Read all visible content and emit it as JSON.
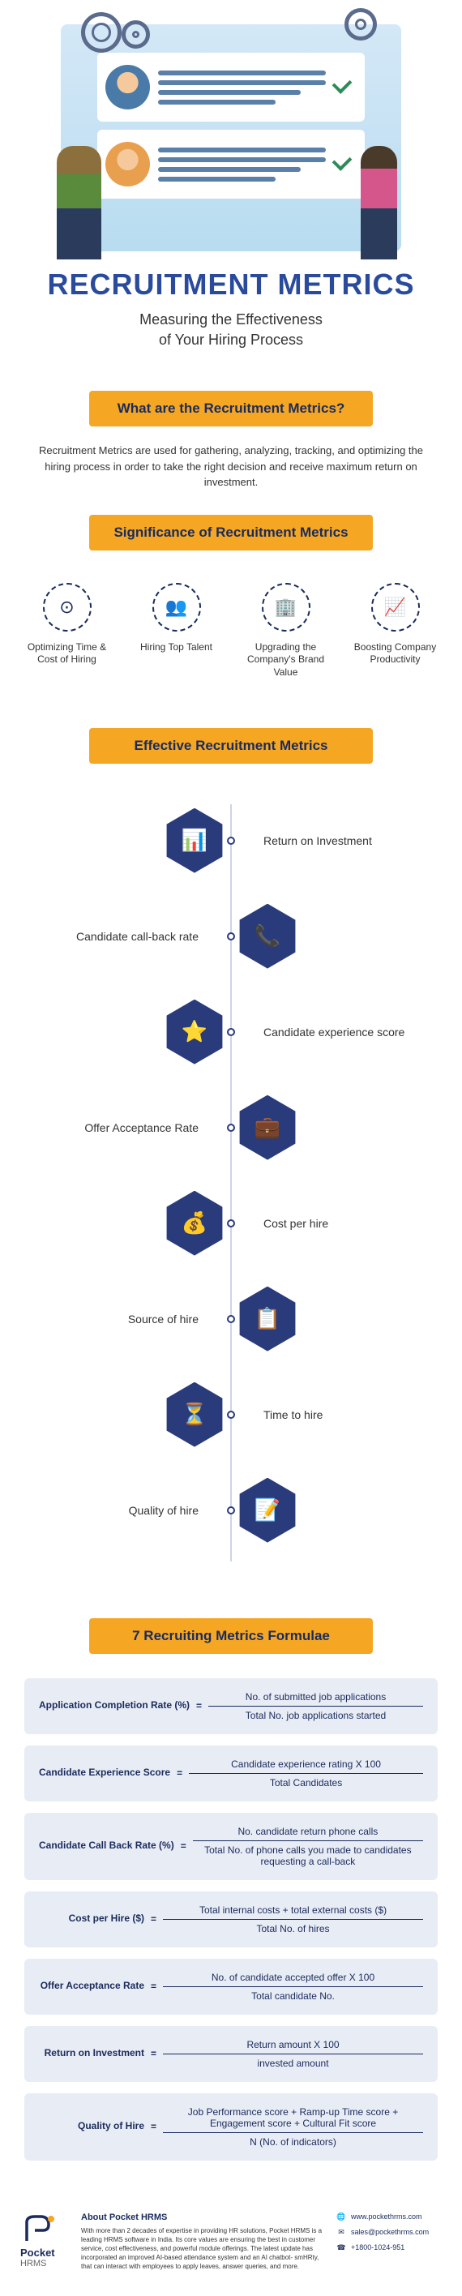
{
  "hero": {
    "title": "RECRUITMENT METRICS",
    "subtitle_line1": "Measuring the Effectiveness",
    "subtitle_line2": "of Your Hiring Process"
  },
  "section1": {
    "heading": "What are the Recruitment Metrics?",
    "text": "Recruitment Metrics are used for gathering, analyzing, tracking, and optimizing the hiring process in order to take the right decision and receive maximum return on investment."
  },
  "section2": {
    "heading": "Significance of Recruitment Metrics",
    "items": [
      {
        "icon": "⊙",
        "label": "Optimizing Time & Cost of Hiring"
      },
      {
        "icon": "👥",
        "label": "Hiring Top Talent"
      },
      {
        "icon": "🏢",
        "label": "Upgrading the Company's Brand Value"
      },
      {
        "icon": "📈",
        "label": "Boosting Company Productivity"
      }
    ]
  },
  "section3": {
    "heading": "Effective Recruitment Metrics",
    "timeline": [
      {
        "side": "left",
        "icon": "📊",
        "label": "Return on Investment"
      },
      {
        "side": "right",
        "icon": "📞",
        "label": "Candidate call-back rate"
      },
      {
        "side": "left",
        "icon": "⭐",
        "label": "Candidate experience score"
      },
      {
        "side": "right",
        "icon": "💼",
        "label": "Offer Acceptance Rate"
      },
      {
        "side": "left",
        "icon": "💰",
        "label": "Cost per hire"
      },
      {
        "side": "right",
        "icon": "📋",
        "label": "Source of hire"
      },
      {
        "side": "left",
        "icon": "⏳",
        "label": "Time to hire"
      },
      {
        "side": "right",
        "icon": "📝",
        "label": "Quality of hire"
      }
    ],
    "hex_color": "#2a3b7c",
    "line_color": "#ccd4e8"
  },
  "section4": {
    "heading": "7 Recruiting Metrics Formulae",
    "formulae": [
      {
        "name": "Application Completion Rate (%)",
        "numerator": "No. of submitted job applications",
        "denominator": "Total No. job applications started"
      },
      {
        "name": "Candidate Experience Score",
        "numerator": "Candidate experience rating X 100",
        "denominator": "Total Candidates"
      },
      {
        "name": "Candidate Call Back Rate (%)",
        "numerator": "No. candidate return phone calls",
        "denominator": "Total No. of phone calls you made to candidates requesting a call-back"
      },
      {
        "name": "Cost per Hire ($)",
        "numerator": "Total internal costs + total external costs ($)",
        "denominator": "Total No. of hires"
      },
      {
        "name": "Offer Acceptance Rate",
        "numerator": "No. of candidate accepted offer X 100",
        "denominator": "Total candidate No."
      },
      {
        "name": "Return on Investment",
        "numerator": "Return amount X 100",
        "denominator": "invested amount"
      },
      {
        "name": "Quality of Hire",
        "numerator": "Job Performance score + Ramp-up Time score + Engagement score + Cultural Fit score",
        "denominator": "N (No. of indicators)"
      }
    ],
    "box_bg": "#e8ecf5"
  },
  "footer": {
    "logo_name": "Pocket",
    "logo_sub": "HRMS",
    "about_title": "About Pocket HRMS",
    "about_text": "With more than 2 decades of expertise in providing HR solutions, Pocket HRMS is a leading HRMS software in India. Its core values are ensuring the best in customer service, cost effectiveness, and powerful module offerings. The latest update has incorporated an improved AI-based attendance system and an AI chatbot- smHRty, that can interact with employees to apply leaves, answer queries, and more.",
    "contacts": [
      {
        "icon": "🌐",
        "text": "www.pockethrms.com"
      },
      {
        "icon": "✉",
        "text": "sales@pockethrms.com"
      },
      {
        "icon": "☎",
        "text": "+1800-1024-951"
      }
    ]
  },
  "colors": {
    "primary": "#2a4b9c",
    "accent": "#f5a623",
    "dark": "#1a2b5c",
    "hex_bg": "#2a3b7c"
  }
}
